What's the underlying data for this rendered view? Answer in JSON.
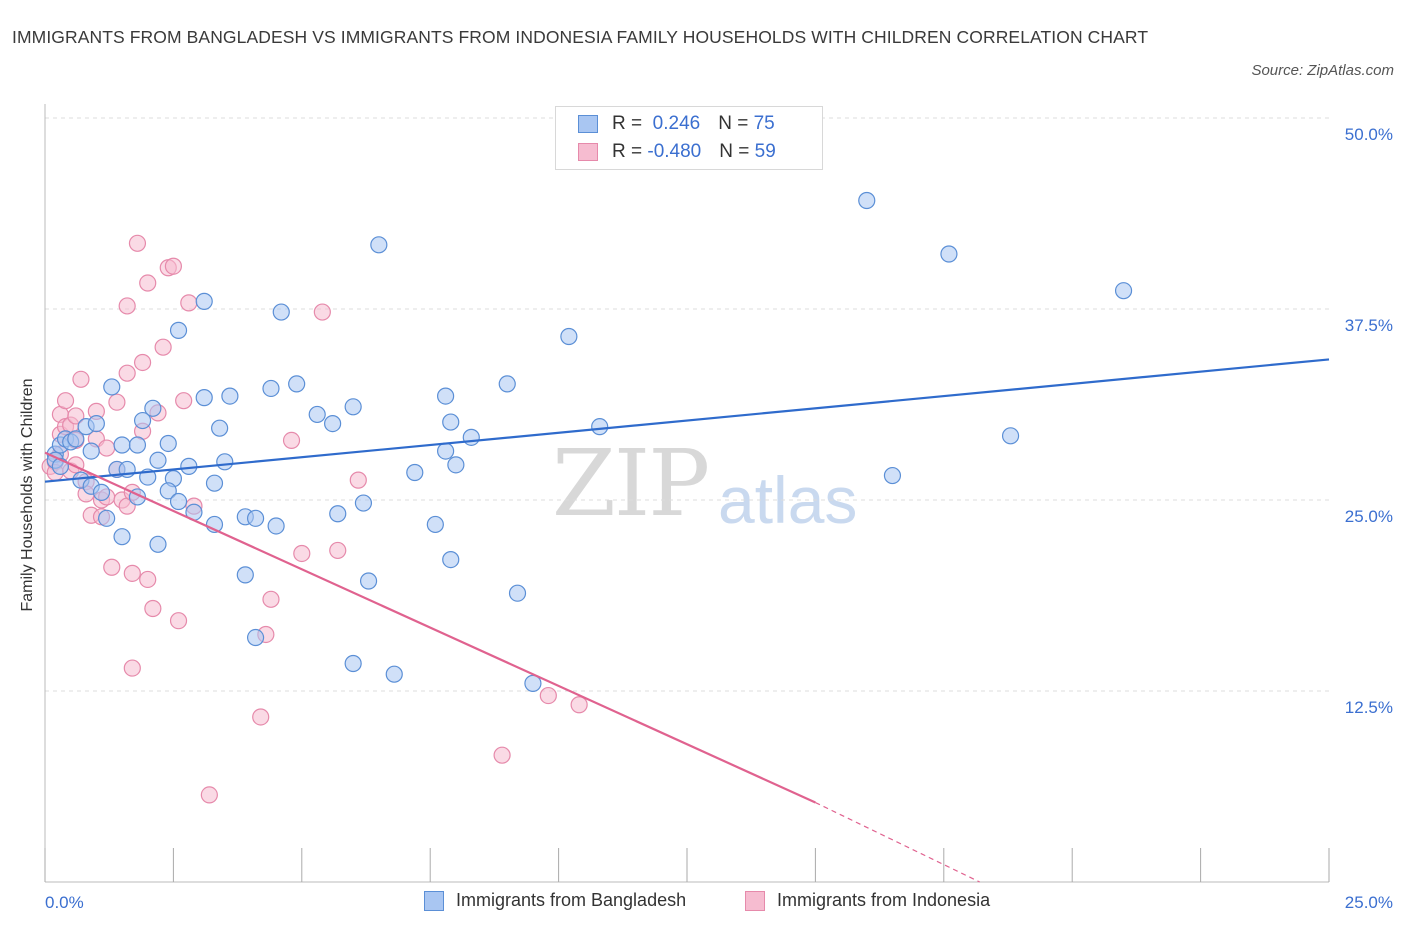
{
  "title": "IMMIGRANTS FROM BANGLADESH VS IMMIGRANTS FROM INDONESIA FAMILY HOUSEHOLDS WITH CHILDREN CORRELATION CHART",
  "source": "Source: ZipAtlas.com",
  "watermark": {
    "zip": "ZIP",
    "atlas": "atlas"
  },
  "legend": {
    "rows": [
      {
        "r_label": "R = ",
        "r_value": " 0.246",
        "n_label": "N = ",
        "n_value": "75"
      },
      {
        "r_label": "R = ",
        "r_value": "-0.480",
        "n_label": "N = ",
        "n_value": "59"
      }
    ]
  },
  "colors": {
    "bangladesh_fill": "#a9c6f2",
    "bangladesh_stroke": "#5b8fd6",
    "bangladesh_line": "#2f6bcc",
    "indonesia_fill": "#f6bcd0",
    "indonesia_stroke": "#e68aab",
    "indonesia_line": "#e0628f",
    "axis_text": "#3b6fd0",
    "grid": "#dcdcdc"
  },
  "chart_data": {
    "type": "scatter",
    "title": "IMMIGRANTS FROM BANGLADESH VS IMMIGRANTS FROM INDONESIA FAMILY HOUSEHOLDS WITH CHILDREN CORRELATION CHART",
    "xlabel": "",
    "ylabel": "Family Households with Children",
    "xlim": [
      0,
      25
    ],
    "ylim": [
      0,
      50
    ],
    "x_tick_labels": [
      {
        "value": 0,
        "label": "0.0%"
      },
      {
        "value": 25,
        "label": "25.0%"
      }
    ],
    "y_tick_labels": [
      {
        "value": 12.5,
        "label": "12.5%"
      },
      {
        "value": 25,
        "label": "25.0%"
      },
      {
        "value": 37.5,
        "label": "37.5%"
      },
      {
        "value": 50,
        "label": "50.0%"
      }
    ],
    "grid": true,
    "legend_position": "bottom",
    "series": [
      {
        "name": "Immigrants from Bangladesh",
        "r": 0.246,
        "n": 75,
        "trend": {
          "x0": 0,
          "y0": 26.2,
          "x1": 25,
          "y1": 34.2
        },
        "points": [
          [
            0.2,
            28.0
          ],
          [
            0.3,
            28.6
          ],
          [
            0.4,
            29.0
          ],
          [
            0.5,
            28.8
          ],
          [
            0.6,
            29.0
          ],
          [
            0.2,
            27.6
          ],
          [
            0.3,
            27.2
          ],
          [
            0.7,
            26.3
          ],
          [
            0.8,
            29.8
          ],
          [
            0.9,
            25.9
          ],
          [
            0.9,
            28.2
          ],
          [
            1.0,
            30.0
          ],
          [
            1.1,
            25.5
          ],
          [
            1.2,
            23.8
          ],
          [
            1.3,
            32.4
          ],
          [
            1.4,
            27.0
          ],
          [
            1.5,
            28.6
          ],
          [
            1.5,
            22.6
          ],
          [
            1.6,
            27.0
          ],
          [
            1.8,
            25.2
          ],
          [
            1.8,
            28.6
          ],
          [
            1.9,
            30.2
          ],
          [
            2.0,
            26.5
          ],
          [
            2.1,
            31.0
          ],
          [
            2.2,
            27.6
          ],
          [
            2.2,
            22.1
          ],
          [
            2.4,
            28.7
          ],
          [
            2.5,
            26.4
          ],
          [
            2.4,
            25.6
          ],
          [
            2.6,
            24.9
          ],
          [
            2.6,
            36.1
          ],
          [
            2.8,
            27.2
          ],
          [
            2.9,
            24.2
          ],
          [
            3.1,
            31.7
          ],
          [
            3.1,
            38.0
          ],
          [
            3.3,
            26.1
          ],
          [
            3.3,
            23.4
          ],
          [
            3.4,
            29.7
          ],
          [
            3.5,
            27.5
          ],
          [
            3.6,
            31.8
          ],
          [
            3.9,
            23.9
          ],
          [
            3.9,
            20.1
          ],
          [
            4.1,
            23.8
          ],
          [
            4.1,
            16.0
          ],
          [
            4.4,
            32.3
          ],
          [
            4.5,
            23.3
          ],
          [
            4.6,
            37.3
          ],
          [
            4.9,
            32.6
          ],
          [
            5.3,
            30.6
          ],
          [
            5.6,
            30.0
          ],
          [
            5.7,
            24.1
          ],
          [
            6.0,
            31.1
          ],
          [
            6.0,
            14.3
          ],
          [
            6.2,
            24.8
          ],
          [
            6.3,
            19.7
          ],
          [
            6.5,
            41.7
          ],
          [
            6.8,
            13.6
          ],
          [
            7.2,
            26.8
          ],
          [
            7.6,
            23.4
          ],
          [
            7.8,
            28.2
          ],
          [
            7.8,
            31.8
          ],
          [
            7.9,
            30.1
          ],
          [
            7.9,
            21.1
          ],
          [
            8.0,
            27.3
          ],
          [
            8.3,
            29.1
          ],
          [
            9.0,
            32.6
          ],
          [
            9.2,
            18.9
          ],
          [
            9.5,
            13.0
          ],
          [
            10.2,
            35.7
          ],
          [
            10.8,
            29.8
          ],
          [
            16.0,
            44.6
          ],
          [
            16.5,
            26.6
          ],
          [
            17.6,
            41.1
          ],
          [
            18.8,
            29.2
          ],
          [
            21.0,
            38.7
          ]
        ]
      },
      {
        "name": "Immigrants from Indonesia",
        "r": -0.48,
        "n": 59,
        "trend": {
          "x0": 0,
          "y0": 28.1,
          "x1": 15.0,
          "y1": 5.2,
          "dash_to_x": 18.2,
          "dash_to_y": 0
        },
        "points": [
          [
            0.1,
            27.2
          ],
          [
            0.2,
            27.5
          ],
          [
            0.2,
            26.8
          ],
          [
            0.3,
            28.0
          ],
          [
            0.3,
            29.3
          ],
          [
            0.3,
            30.6
          ],
          [
            0.4,
            31.5
          ],
          [
            0.4,
            29.8
          ],
          [
            0.5,
            29.9
          ],
          [
            0.5,
            26.9
          ],
          [
            0.6,
            27.3
          ],
          [
            0.6,
            28.9
          ],
          [
            0.6,
            30.5
          ],
          [
            0.7,
            32.9
          ],
          [
            0.8,
            26.2
          ],
          [
            0.8,
            25.4
          ],
          [
            0.9,
            24.0
          ],
          [
            1.0,
            29.0
          ],
          [
            1.0,
            30.8
          ],
          [
            1.1,
            23.9
          ],
          [
            1.1,
            25.0
          ],
          [
            1.2,
            25.2
          ],
          [
            1.2,
            28.4
          ],
          [
            1.3,
            20.6
          ],
          [
            1.4,
            31.4
          ],
          [
            1.4,
            27.0
          ],
          [
            1.5,
            25.0
          ],
          [
            1.6,
            24.6
          ],
          [
            1.6,
            33.3
          ],
          [
            1.6,
            37.7
          ],
          [
            1.7,
            20.2
          ],
          [
            1.7,
            25.5
          ],
          [
            1.7,
            14.0
          ],
          [
            1.8,
            41.8
          ],
          [
            1.9,
            34.0
          ],
          [
            1.9,
            29.5
          ],
          [
            2.0,
            39.2
          ],
          [
            2.0,
            19.8
          ],
          [
            2.1,
            17.9
          ],
          [
            2.2,
            30.7
          ],
          [
            2.3,
            35.0
          ],
          [
            2.4,
            40.2
          ],
          [
            2.5,
            40.3
          ],
          [
            2.6,
            17.1
          ],
          [
            2.7,
            31.5
          ],
          [
            2.8,
            37.9
          ],
          [
            2.9,
            24.6
          ],
          [
            3.2,
            5.7
          ],
          [
            4.2,
            10.8
          ],
          [
            4.3,
            16.2
          ],
          [
            4.4,
            18.5
          ],
          [
            4.8,
            28.9
          ],
          [
            5.0,
            21.5
          ],
          [
            5.4,
            37.3
          ],
          [
            5.7,
            21.7
          ],
          [
            6.1,
            26.3
          ],
          [
            8.9,
            8.3
          ],
          [
            9.8,
            12.2
          ],
          [
            10.4,
            11.6
          ]
        ]
      }
    ]
  },
  "bottom_legend": [
    "Immigrants from Bangladesh",
    "Immigrants from Indonesia"
  ]
}
